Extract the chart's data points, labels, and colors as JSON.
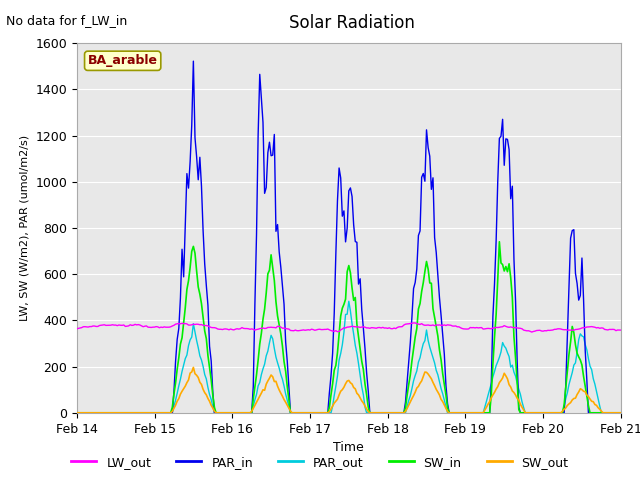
{
  "title": "Solar Radiation",
  "subtitle": "No data for f_LW_in",
  "xlabel": "Time",
  "ylabel": "LW, SW (W/m2), PAR (umol/m2/s)",
  "legend_labels": [
    "LW_out",
    "PAR_in",
    "PAR_out",
    "SW_in",
    "SW_out"
  ],
  "legend_colors": [
    "#ff00ff",
    "#0000ee",
    "#00ccdd",
    "#00ee00",
    "#ffaa00"
  ],
  "site_label": "BA_arable",
  "ylim": [
    0,
    1600
  ],
  "background_color": "#e8e8e8",
  "xtick_positions": [
    0,
    1,
    2,
    3,
    4,
    5,
    6,
    7
  ],
  "xtick_labels": [
    "Feb 14",
    "Feb 15",
    "Feb 16",
    "Feb 17",
    "Feb 18",
    "Feb 19",
    "Feb 20",
    "Feb 21"
  ],
  "ytick_positions": [
    0,
    200,
    400,
    600,
    800,
    1000,
    1200,
    1400,
    1600
  ]
}
